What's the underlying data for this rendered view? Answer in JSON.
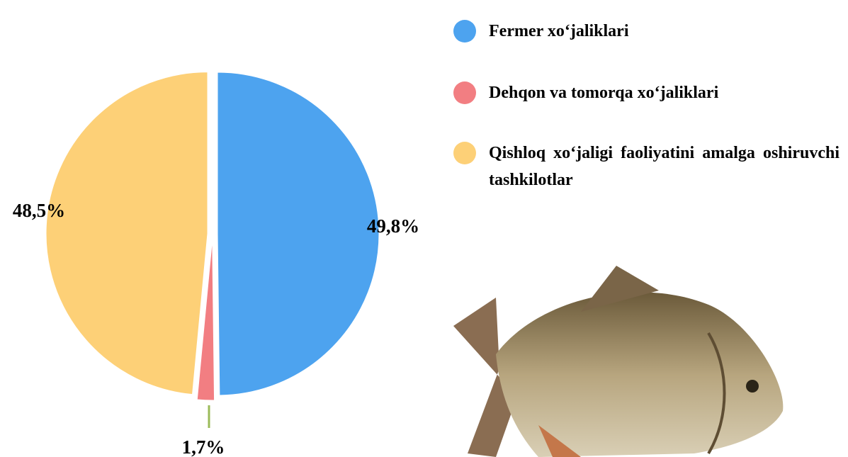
{
  "chart_data": {
    "type": "pie",
    "series": [
      {
        "name": "Fermer xo‘jaliklari",
        "color": "#4da3ef",
        "values": [
          49.8
        ],
        "value_labels": [
          "49,8%"
        ]
      },
      {
        "name": "Dehqon va tomorqa  xo‘jaliklari",
        "color": "#f27e82",
        "values": [
          1.7
        ],
        "value_labels": [
          "1,7%"
        ]
      },
      {
        "name": "Qishloq xo‘jaligi faoliyatini amalga oshiruvchi tashkilotlar",
        "color": "#fdd077",
        "values": [
          48.5
        ],
        "value_labels": [
          "48,5%"
        ]
      }
    ]
  }
}
